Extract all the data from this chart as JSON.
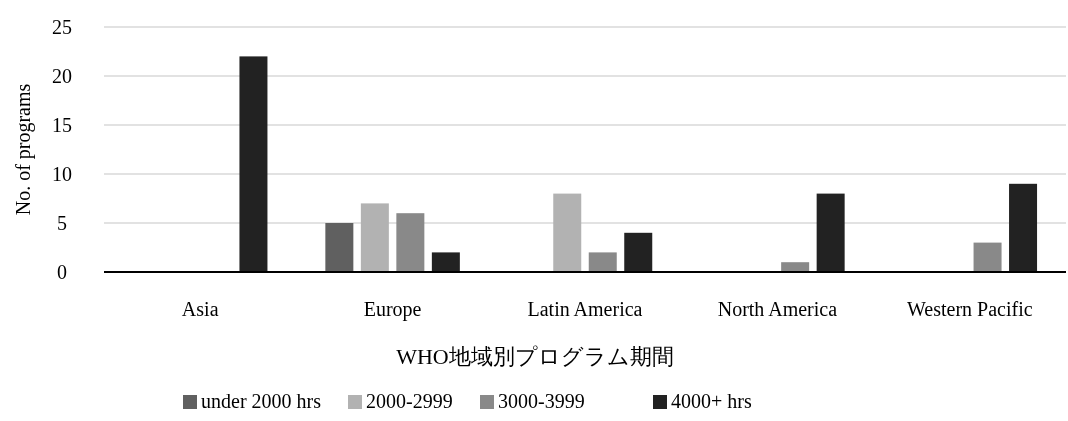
{
  "chart_data": {
    "type": "bar",
    "xlabel": "WHO地域別プログラム期間",
    "ylabel": "No. of programs",
    "categories": [
      "Asia",
      "Europe",
      "Latin America",
      "North America",
      "Western Pacific"
    ],
    "series": [
      {
        "name": "under 2000 hrs",
        "color": "#606060",
        "values": [
          0,
          5,
          0,
          0,
          0
        ]
      },
      {
        "name": "2000-2999",
        "color": "#b2b2b2",
        "values": [
          0,
          7,
          8,
          0,
          0
        ]
      },
      {
        "name": "3000-3999",
        "color": "#898989",
        "values": [
          0,
          6,
          2,
          1,
          3
        ]
      },
      {
        "name": "4000+ hrs",
        "color": "#222222",
        "values": [
          22,
          2,
          4,
          8,
          9
        ]
      }
    ],
    "ylim": [
      0,
      25
    ],
    "yticks": [
      0,
      5,
      10,
      15,
      20,
      25
    ],
    "grid": "y",
    "legend": "bottom"
  }
}
